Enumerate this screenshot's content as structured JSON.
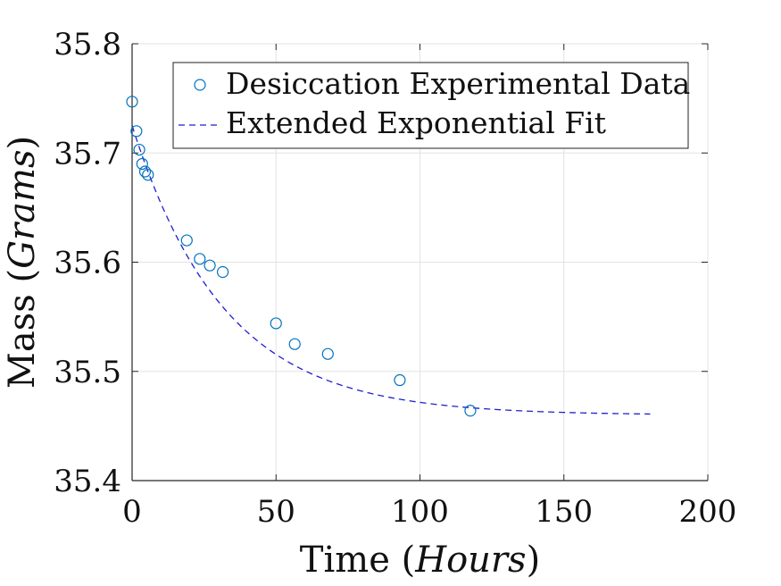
{
  "chart_data": {
    "type": "scatter",
    "xlabel": {
      "text": "Time (",
      "var": "Hours",
      "close": ")"
    },
    "ylabel": {
      "text": "Mass (",
      "var": "Grams",
      "close": ")"
    },
    "xlim": [
      0,
      200
    ],
    "ylim": [
      35.4,
      35.8
    ],
    "xticks": [
      0,
      50,
      100,
      150,
      200
    ],
    "yticks": [
      35.4,
      35.5,
      35.6,
      35.7,
      35.8
    ],
    "xtick_labels": [
      "0",
      "50",
      "100",
      "150",
      "200"
    ],
    "ytick_labels": [
      "35.4",
      "35.5",
      "35.6",
      "35.7",
      "35.8"
    ],
    "grid": true,
    "legend_position": "top-right",
    "series": [
      {
        "name": "Desiccation Experimental Data",
        "kind": "scatter",
        "marker": "circle",
        "color": "#0072BD",
        "x": [
          0,
          1.5,
          2.5,
          3.5,
          4.5,
          5.5,
          19,
          23.5,
          27,
          31.5,
          50,
          56.5,
          68,
          93,
          117.5
        ],
        "y": [
          35.747,
          35.72,
          35.703,
          35.69,
          35.683,
          35.68,
          35.62,
          35.603,
          35.597,
          35.591,
          35.544,
          35.525,
          35.516,
          35.492,
          35.464
        ]
      },
      {
        "name": "Extended Exponential Fit",
        "kind": "line",
        "dash": "dashed",
        "color": "#1F1FD0",
        "model": {
          "a": 35.46,
          "b": 0.265,
          "tau": 32,
          "x_start": 0,
          "x_end": 180
        }
      }
    ]
  }
}
